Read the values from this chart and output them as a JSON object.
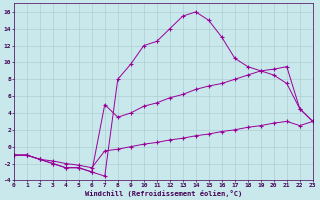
{
  "xlabel": "Windchill (Refroidissement éolien,°C)",
  "background_color": "#c8e8ec",
  "grid_color": "#a8c8cc",
  "line_color": "#990099",
  "xlim": [
    0,
    23
  ],
  "ylim": [
    -4,
    17
  ],
  "xticks": [
    0,
    1,
    2,
    3,
    4,
    5,
    6,
    7,
    8,
    9,
    10,
    11,
    12,
    13,
    14,
    15,
    16,
    17,
    18,
    19,
    20,
    21,
    22,
    23
  ],
  "yticks": [
    -4,
    -2,
    0,
    2,
    4,
    6,
    8,
    10,
    12,
    14,
    16
  ],
  "curve1_x": [
    0,
    1,
    2,
    3,
    4,
    5,
    6,
    7,
    8,
    9,
    10,
    11,
    12,
    13,
    14,
    15,
    16,
    17,
    18,
    19,
    20,
    21,
    22,
    23
  ],
  "curve1_y": [
    -1,
    -1,
    -1.5,
    -2,
    -2.5,
    -2.5,
    -3,
    -3.5,
    8,
    9.8,
    12,
    12.5,
    14,
    15.5,
    16,
    15,
    13,
    10.5,
    9.5,
    9,
    8.5,
    7.5,
    4.5,
    3
  ],
  "curve2_x": [
    0,
    1,
    2,
    3,
    4,
    5,
    6,
    7,
    8,
    9,
    10,
    11,
    12,
    13,
    14,
    15,
    16,
    17,
    18,
    19,
    20,
    21,
    22,
    23
  ],
  "curve2_y": [
    -1,
    -1,
    -1.5,
    -2,
    -2.5,
    -2.5,
    -3,
    5,
    3.5,
    4.0,
    4.8,
    5.2,
    5.8,
    6.2,
    6.8,
    7.2,
    7.5,
    8.0,
    8.5,
    9.0,
    9.2,
    9.5,
    4.5,
    3
  ],
  "curve3_x": [
    0,
    1,
    2,
    3,
    4,
    5,
    6,
    7,
    8,
    9,
    10,
    11,
    12,
    13,
    14,
    15,
    16,
    17,
    18,
    19,
    20,
    21,
    22,
    23
  ],
  "curve3_y": [
    -1,
    -1,
    -1.5,
    -1.7,
    -2.0,
    -2.2,
    -2.5,
    -0.5,
    -0.3,
    0.0,
    0.3,
    0.5,
    0.8,
    1.0,
    1.3,
    1.5,
    1.8,
    2.0,
    2.3,
    2.5,
    2.8,
    3.0,
    2.5,
    3
  ],
  "figsize": [
    3.2,
    2.0
  ],
  "dpi": 100
}
